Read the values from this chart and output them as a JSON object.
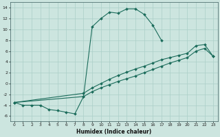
{
  "xlabel": "Humidex (Indice chaleur)",
  "xlim": [
    -0.5,
    23.5
  ],
  "ylim": [
    -7,
    15
  ],
  "yticks": [
    -6,
    -4,
    -2,
    0,
    2,
    4,
    6,
    8,
    10,
    12,
    14
  ],
  "xticks": [
    0,
    1,
    2,
    3,
    4,
    5,
    6,
    7,
    8,
    9,
    10,
    11,
    12,
    13,
    14,
    15,
    16,
    17,
    18,
    19,
    20,
    21,
    22,
    23
  ],
  "bg_color": "#cce5df",
  "line_color": "#1a6b5a",
  "grid_color": "#aacfc8",
  "lines": [
    {
      "x": [
        0,
        1,
        2,
        3,
        4,
        5,
        6,
        7,
        8,
        9,
        10,
        11,
        12,
        13,
        14,
        15,
        16,
        17
      ],
      "y": [
        -3.5,
        -4.0,
        -4.0,
        -4.0,
        -4.8,
        -5.0,
        -5.3,
        -5.6,
        -2.4,
        10.5,
        12.0,
        13.2,
        13.0,
        13.8,
        13.8,
        12.8,
        10.8,
        8.0
      ]
    },
    {
      "x": [
        0,
        8,
        9,
        10,
        11,
        12,
        13,
        14,
        15,
        16,
        17,
        18,
        19,
        20,
        21,
        22,
        23
      ],
      "y": [
        -3.5,
        -1.8,
        -0.8,
        0.0,
        0.8,
        1.5,
        2.1,
        2.7,
        3.2,
        3.8,
        4.4,
        4.8,
        5.2,
        5.6,
        7.0,
        7.2,
        5.0
      ]
    },
    {
      "x": [
        0,
        8,
        9,
        10,
        11,
        12,
        13,
        14,
        15,
        16,
        17,
        18,
        19,
        20,
        21,
        22,
        23
      ],
      "y": [
        -3.5,
        -2.4,
        -1.5,
        -0.8,
        -0.2,
        0.4,
        0.9,
        1.4,
        2.0,
        2.6,
        3.2,
        3.8,
        4.3,
        4.8,
        6.0,
        6.5,
        5.0
      ]
    }
  ]
}
